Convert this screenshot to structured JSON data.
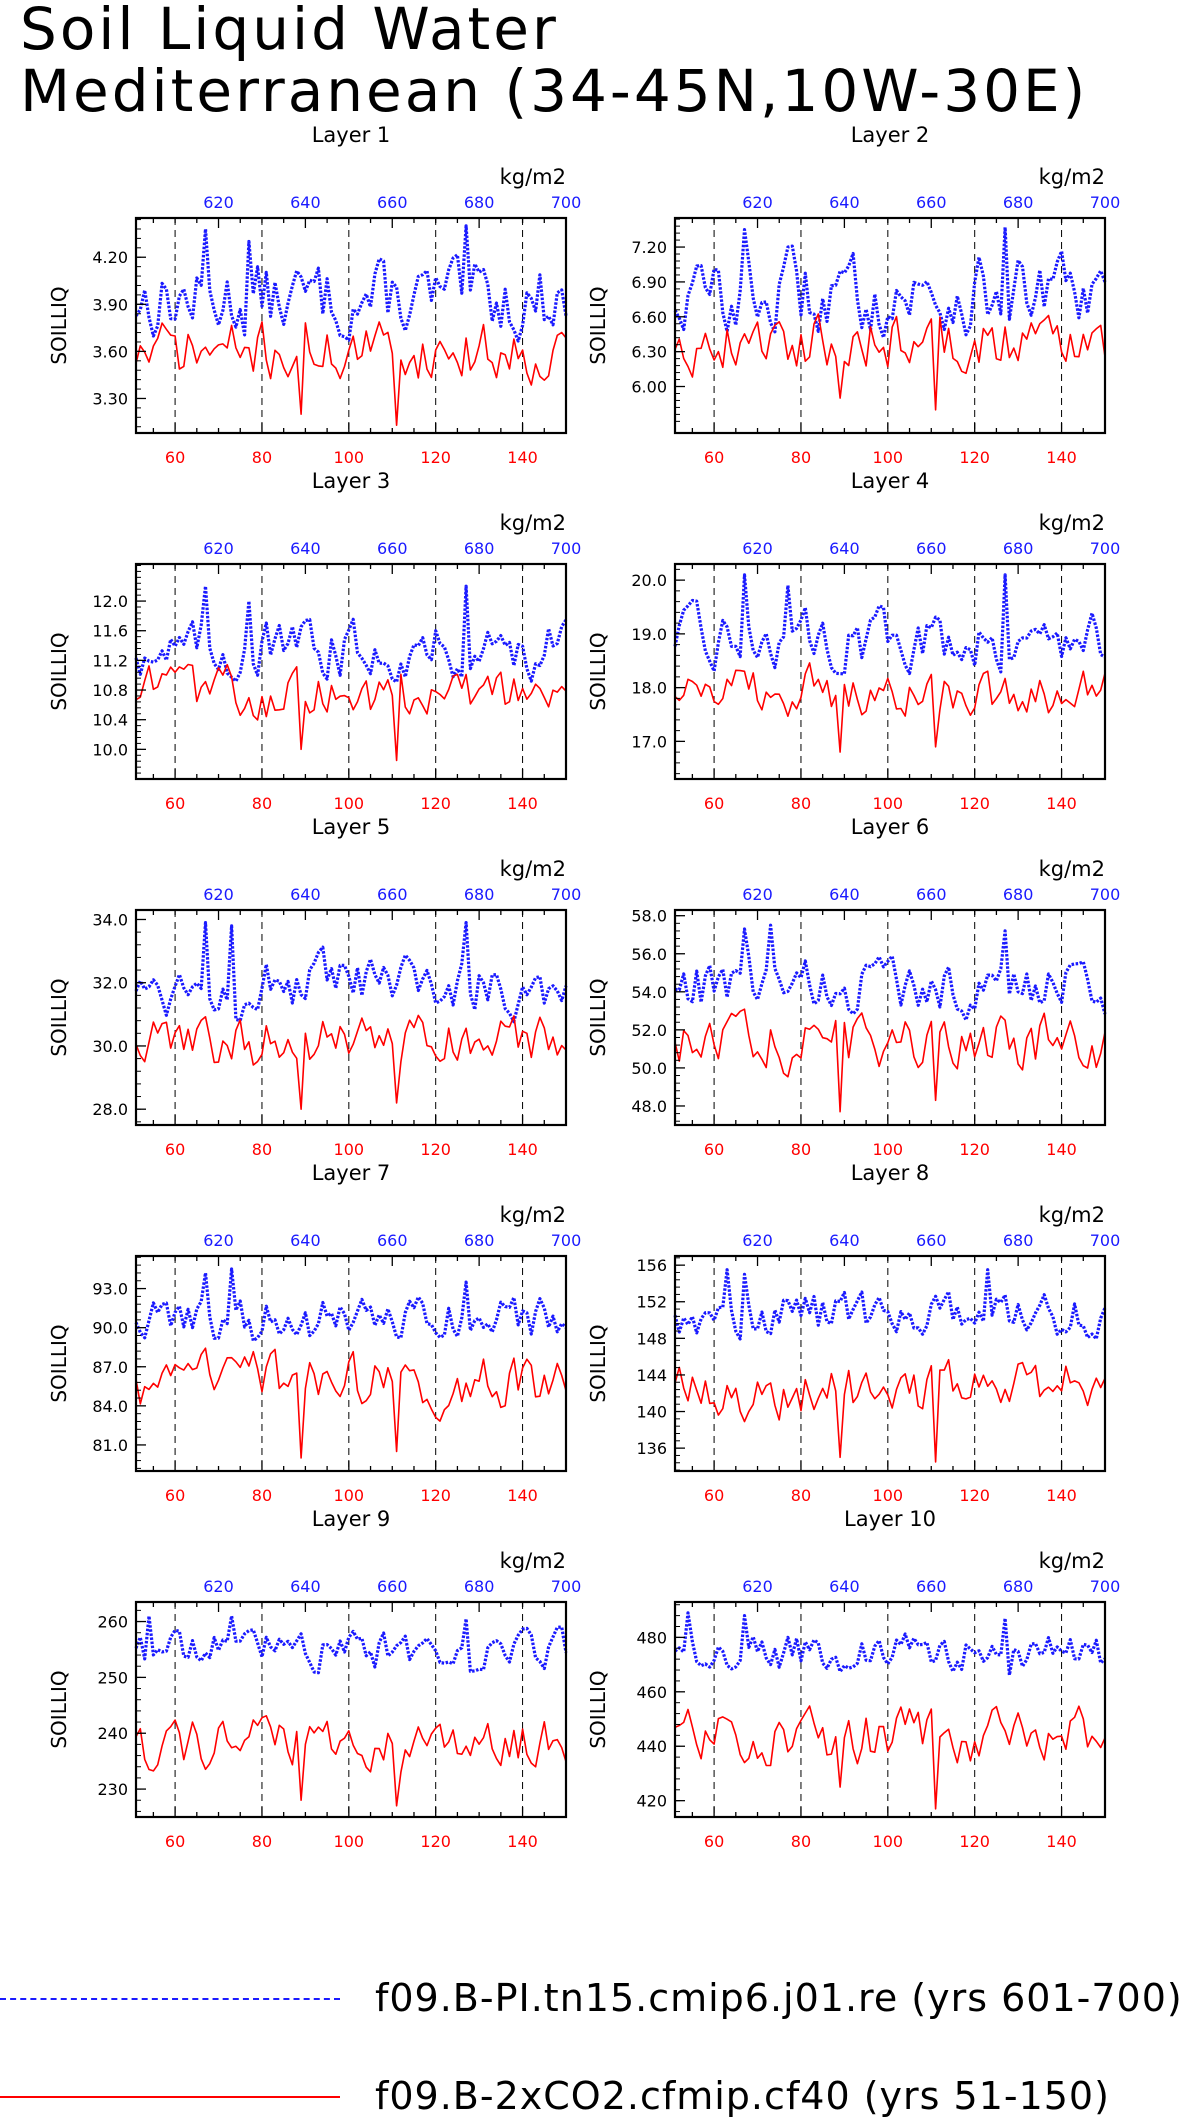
{
  "title": [
    "Soil Liquid Water",
    "Mediterranean (34-45N,10W-30E)"
  ],
  "colors": {
    "series1": "#1a1aff",
    "series2": "#ff0000",
    "axis": "#000000"
  },
  "legend": [
    {
      "label": "f09.B-PI.tn15.cmip6.j01.re (yrs 601-700)",
      "color": "#1a1aff",
      "style": "dashed"
    },
    {
      "label": "f09.B-2xCO2.cfmip.cf40 (yrs 51-150)",
      "color": "#ff0000",
      "style": "solid"
    }
  ],
  "chart_data": [
    {
      "type": "line",
      "title": "Layer 1",
      "ylabel": "SOILLIQ",
      "top_axis_label": "kg/m2",
      "xlim": [
        51,
        150
      ],
      "top_xlim": [
        601,
        700
      ],
      "ylim": [
        3.08,
        4.45
      ],
      "xticks": [
        60,
        80,
        100,
        120,
        140
      ],
      "top_xticks": [
        620,
        640,
        660,
        680,
        700
      ],
      "yticks": [
        "3.30",
        "3.60",
        "3.90",
        "4.20"
      ],
      "series": [
        {
          "name": "f09.B-PI.tn15.cmip6.j01.re (yrs 601-700)",
          "color": "#1a1aff",
          "mean": 3.93,
          "amp": 0.2,
          "peaks": [
            [
              617,
              4.38
            ],
            [
              627,
              4.3
            ],
            [
              677,
              4.4
            ]
          ]
        },
        {
          "name": "f09.B-2xCO2.cfmip.cf40 (yrs 51-150)",
          "color": "#ff0000",
          "mean": 3.6,
          "amp": 0.16,
          "dips": [
            [
              89,
              3.2
            ],
            [
              111,
              3.13
            ]
          ]
        }
      ]
    },
    {
      "type": "line",
      "title": "Layer 2",
      "ylabel": "SOILLIQ",
      "top_axis_label": "kg/m2",
      "xlim": [
        51,
        150
      ],
      "top_xlim": [
        601,
        700
      ],
      "ylim": [
        5.6,
        7.45
      ],
      "xticks": [
        60,
        80,
        100,
        120,
        140
      ],
      "top_xticks": [
        620,
        640,
        660,
        680,
        700
      ],
      "yticks": [
        "6.00",
        "6.30",
        "6.60",
        "6.90",
        "7.20"
      ],
      "series": [
        {
          "name": "f09.B-PI.tn15.cmip6.j01.re (yrs 601-700)",
          "color": "#1a1aff",
          "mean": 6.78,
          "amp": 0.28,
          "peaks": [
            [
              617,
              7.35
            ],
            [
              627,
              7.2
            ],
            [
              677,
              7.37
            ]
          ]
        },
        {
          "name": "f09.B-2xCO2.cfmip.cf40 (yrs 51-150)",
          "color": "#ff0000",
          "mean": 6.4,
          "amp": 0.22,
          "dips": [
            [
              89,
              5.9
            ],
            [
              111,
              5.8
            ]
          ]
        }
      ]
    },
    {
      "type": "line",
      "title": "Layer 3",
      "ylabel": "SOILLIQ",
      "top_axis_label": "kg/m2",
      "xlim": [
        51,
        150
      ],
      "top_xlim": [
        601,
        700
      ],
      "ylim": [
        9.6,
        12.5
      ],
      "xticks": [
        60,
        80,
        100,
        120,
        140
      ],
      "top_xticks": [
        620,
        640,
        660,
        680,
        700
      ],
      "yticks": [
        "10.0",
        "10.4",
        "10.8",
        "11.2",
        "11.6",
        "12.0"
      ],
      "series": [
        {
          "name": "f09.B-PI.tn15.cmip6.j01.re (yrs 601-700)",
          "color": "#1a1aff",
          "mean": 11.35,
          "amp": 0.32,
          "peaks": [
            [
              617,
              12.2
            ],
            [
              627,
              12.0
            ],
            [
              677,
              12.2
            ]
          ]
        },
        {
          "name": "f09.B-2xCO2.cfmip.cf40 (yrs 51-150)",
          "color": "#ff0000",
          "mean": 10.75,
          "amp": 0.3,
          "dips": [
            [
              89,
              10.0
            ],
            [
              111,
              9.85
            ]
          ]
        }
      ]
    },
    {
      "type": "line",
      "title": "Layer 4",
      "ylabel": "SOILLIQ",
      "top_axis_label": "kg/m2",
      "xlim": [
        51,
        150
      ],
      "top_xlim": [
        601,
        700
      ],
      "ylim": [
        16.3,
        20.3
      ],
      "xticks": [
        60,
        80,
        100,
        120,
        140
      ],
      "top_xticks": [
        620,
        640,
        660,
        680,
        700
      ],
      "yticks": [
        "17.0",
        "18.0",
        "19.0",
        "20.0"
      ],
      "series": [
        {
          "name": "f09.B-PI.tn15.cmip6.j01.re (yrs 601-700)",
          "color": "#1a1aff",
          "mean": 18.9,
          "amp": 0.45,
          "peaks": [
            [
              617,
              20.1
            ],
            [
              627,
              19.9
            ],
            [
              677,
              20.1
            ]
          ]
        },
        {
          "name": "f09.B-2xCO2.cfmip.cf40 (yrs 51-150)",
          "color": "#ff0000",
          "mean": 17.9,
          "amp": 0.4,
          "dips": [
            [
              89,
              16.8
            ],
            [
              111,
              16.9
            ]
          ]
        }
      ]
    },
    {
      "type": "line",
      "title": "Layer 5",
      "ylabel": "SOILLIQ",
      "top_axis_label": "kg/m2",
      "xlim": [
        51,
        150
      ],
      "top_xlim": [
        601,
        700
      ],
      "ylim": [
        27.5,
        34.3
      ],
      "xticks": [
        60,
        80,
        100,
        120,
        140
      ],
      "top_xticks": [
        620,
        640,
        660,
        680,
        700
      ],
      "yticks": [
        "28.0",
        "30.0",
        "32.0",
        "34.0"
      ],
      "series": [
        {
          "name": "f09.B-PI.tn15.cmip6.j01.re (yrs 601-700)",
          "color": "#1a1aff",
          "mean": 31.9,
          "amp": 0.75,
          "peaks": [
            [
              617,
              33.9
            ],
            [
              623,
              33.8
            ],
            [
              677,
              33.9
            ]
          ]
        },
        {
          "name": "f09.B-2xCO2.cfmip.cf40 (yrs 51-150)",
          "color": "#ff0000",
          "mean": 30.1,
          "amp": 0.75,
          "dips": [
            [
              89,
              28.0
            ],
            [
              111,
              28.2
            ]
          ]
        }
      ]
    },
    {
      "type": "line",
      "title": "Layer 6",
      "ylabel": "SOILLIQ",
      "top_axis_label": "kg/m2",
      "xlim": [
        51,
        150
      ],
      "top_xlim": [
        601,
        700
      ],
      "ylim": [
        47.0,
        58.3
      ],
      "xticks": [
        60,
        80,
        100,
        120,
        140
      ],
      "top_xticks": [
        620,
        640,
        660,
        680,
        700
      ],
      "yticks": [
        "48.0",
        "50.0",
        "52.0",
        "54.0",
        "56.0",
        "58.0"
      ],
      "series": [
        {
          "name": "f09.B-PI.tn15.cmip6.j01.re (yrs 601-700)",
          "color": "#1a1aff",
          "mean": 54.3,
          "amp": 1.2,
          "peaks": [
            [
              617,
              57.3
            ],
            [
              623,
              57.5
            ],
            [
              677,
              57.2
            ]
          ]
        },
        {
          "name": "f09.B-2xCO2.cfmip.cf40 (yrs 51-150)",
          "color": "#ff0000",
          "mean": 51.3,
          "amp": 1.3,
          "dips": [
            [
              89,
              47.7
            ],
            [
              111,
              48.3
            ]
          ]
        }
      ]
    },
    {
      "type": "line",
      "title": "Layer 7",
      "ylabel": "SOILLIQ",
      "top_axis_label": "kg/m2",
      "xlim": [
        51,
        150
      ],
      "top_xlim": [
        601,
        700
      ],
      "ylim": [
        79.0,
        95.5
      ],
      "xticks": [
        60,
        80,
        100,
        120,
        140
      ],
      "top_xticks": [
        620,
        640,
        660,
        680,
        700
      ],
      "yticks": [
        "81.0",
        "84.0",
        "87.0",
        "90.0",
        "93.0"
      ],
      "series": [
        {
          "name": "f09.B-PI.tn15.cmip6.j01.re (yrs 601-700)",
          "color": "#1a1aff",
          "mean": 90.5,
          "amp": 1.6,
          "peaks": [
            [
              617,
              94.2
            ],
            [
              623,
              94.5
            ],
            [
              677,
              93.5
            ]
          ]
        },
        {
          "name": "f09.B-2xCO2.cfmip.cf40 (yrs 51-150)",
          "color": "#ff0000",
          "mean": 85.8,
          "amp": 1.8,
          "dips": [
            [
              89,
              80.0
            ],
            [
              111,
              80.5
            ]
          ]
        }
      ]
    },
    {
      "type": "line",
      "title": "Layer 8",
      "ylabel": "SOILLIQ",
      "top_axis_label": "kg/m2",
      "xlim": [
        51,
        150
      ],
      "top_xlim": [
        601,
        700
      ],
      "ylim": [
        133.5,
        157.0
      ],
      "xticks": [
        60,
        80,
        100,
        120,
        140
      ],
      "top_xticks": [
        620,
        640,
        660,
        680,
        700
      ],
      "yticks": [
        "136",
        "140",
        "144",
        "148",
        "152",
        "156"
      ],
      "series": [
        {
          "name": "f09.B-PI.tn15.cmip6.j01.re (yrs 601-700)",
          "color": "#1a1aff",
          "mean": 150.5,
          "amp": 2.0,
          "peaks": [
            [
              613,
              155.5
            ],
            [
              617,
              155.0
            ],
            [
              673,
              155.5
            ]
          ]
        },
        {
          "name": "f09.B-2xCO2.cfmip.cf40 (yrs 51-150)",
          "color": "#ff0000",
          "mean": 142.5,
          "amp": 2.6,
          "dips": [
            [
              89,
              135.0
            ],
            [
              111,
              134.5
            ]
          ]
        }
      ]
    },
    {
      "type": "line",
      "title": "Layer 9",
      "ylabel": "SOILLIQ",
      "top_axis_label": "kg/m2",
      "xlim": [
        51,
        150
      ],
      "top_xlim": [
        601,
        700
      ],
      "ylim": [
        225.0,
        263.5
      ],
      "xticks": [
        60,
        80,
        100,
        120,
        140
      ],
      "top_xticks": [
        620,
        640,
        660,
        680,
        700
      ],
      "yticks": [
        "230",
        "240",
        "250",
        "260"
      ],
      "series": [
        {
          "name": "f09.B-PI.tn15.cmip6.j01.re (yrs 601-700)",
          "color": "#1a1aff",
          "mean": 255.0,
          "amp": 3.0,
          "peaks": [
            [
              604,
              261.0
            ],
            [
              623,
              261.0
            ],
            [
              677,
              260.5
            ]
          ]
        },
        {
          "name": "f09.B-2xCO2.cfmip.cf40 (yrs 51-150)",
          "color": "#ff0000",
          "mean": 238.0,
          "amp": 4.0,
          "dips": [
            [
              89,
              228.0
            ],
            [
              111,
              227.0
            ]
          ]
        }
      ]
    },
    {
      "type": "line",
      "title": "Layer 10",
      "ylabel": "SOILLIQ",
      "top_axis_label": "kg/m2",
      "xlim": [
        51,
        150
      ],
      "top_xlim": [
        601,
        700
      ],
      "ylim": [
        414.0,
        493.0
      ],
      "xticks": [
        60,
        80,
        100,
        120,
        140
      ],
      "top_xticks": [
        620,
        640,
        660,
        680,
        700
      ],
      "yticks": [
        "420",
        "440",
        "460",
        "480"
      ],
      "series": [
        {
          "name": "f09.B-PI.tn15.cmip6.j01.re (yrs 601-700)",
          "color": "#1a1aff",
          "mean": 474.0,
          "amp": 6.0,
          "peaks": [
            [
              604,
              489.0
            ],
            [
              617,
              488.0
            ],
            [
              677,
              487.0
            ]
          ]
        },
        {
          "name": "f09.B-2xCO2.cfmip.cf40 (yrs 51-150)",
          "color": "#ff0000",
          "mean": 443.0,
          "amp": 9.0,
          "dips": [
            [
              89,
              425.0
            ],
            [
              111,
              417.0
            ]
          ]
        }
      ]
    }
  ]
}
